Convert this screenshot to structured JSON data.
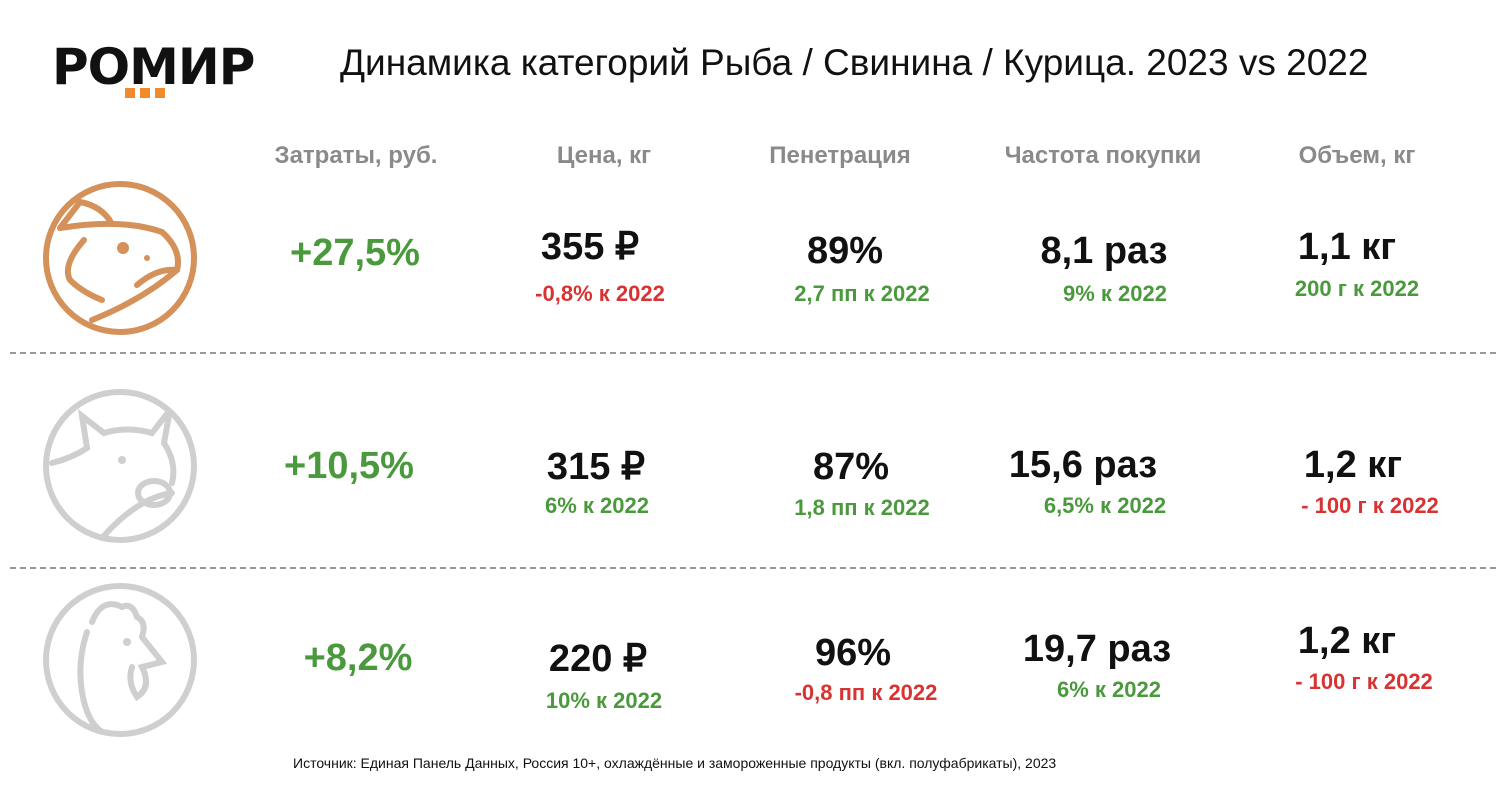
{
  "logo": {
    "text": "РОМИР"
  },
  "title": "Динамика категорий Рыба / Свинина / Курица. 2023 vs 2022",
  "headers": [
    "Затраты, руб.",
    "Цена, кг",
    "Пенетрация",
    "Частота покупки",
    "Объем, кг"
  ],
  "rows": [
    {
      "category": "fish",
      "icon": "fish-icon",
      "spend": "+27,5%",
      "price": "355 ₽",
      "price_delta": "-0,8% к 2022",
      "penetration": "89%",
      "penetration_delta": "2,7 пп к 2022",
      "frequency": "8,1 раз",
      "frequency_delta": "9% к 2022",
      "volume": "1,1 кг",
      "volume_delta": "200 г к 2022"
    },
    {
      "category": "pork",
      "icon": "pig-icon",
      "spend": "+10,5%",
      "price": "315 ₽",
      "price_delta": "6% к 2022",
      "penetration": "87%",
      "penetration_delta": "1,8 пп к 2022",
      "frequency": "15,6 раз",
      "frequency_delta": "6,5% к 2022",
      "volume": "1,2 кг",
      "volume_delta": "- 100 г к 2022"
    },
    {
      "category": "chicken",
      "icon": "chicken-icon",
      "spend": "+8,2%",
      "price": "220 ₽",
      "price_delta": "10% к 2022",
      "penetration": "96%",
      "penetration_delta": "-0,8 пп к 2022",
      "frequency": "19,7 раз",
      "frequency_delta": "6% к 2022",
      "volume": "1,2 кг",
      "volume_delta": "- 100 г к 2022"
    }
  ],
  "source": "Источник: Единая Панель Данных, Россия 10+, охлаждённые и замороженные продукты (вкл. полуфабрикаты), 2023",
  "colors": {
    "positive": "#4a9a3d",
    "negative": "#d83232",
    "accent": "#d4915a",
    "logo_dots": "#f08a2c"
  }
}
